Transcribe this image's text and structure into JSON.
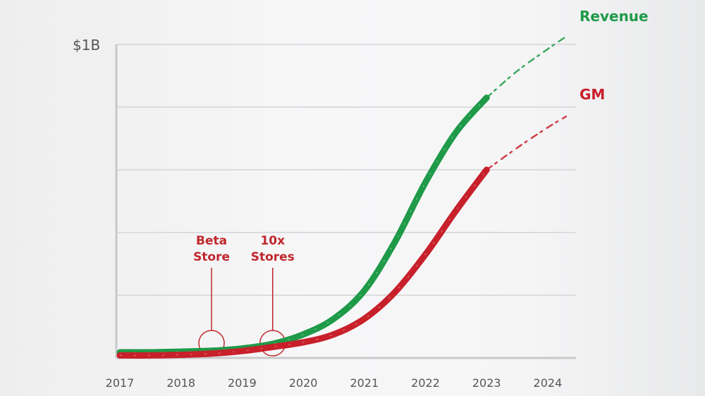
{
  "chart_data": {
    "type": "line",
    "title": "",
    "xlabel": "",
    "ylabel": "",
    "y_unit": "USD millions",
    "y_top_label": "$1B",
    "ylim": [
      0,
      1000
    ],
    "y_gridlines": [
      200,
      400,
      600,
      800,
      1000
    ],
    "grid": true,
    "x": [
      2017,
      2018,
      2019,
      2020,
      2021,
      2022,
      2023,
      2024
    ],
    "x_tick_labels": [
      "2017",
      "2018",
      "2019",
      "2020",
      "2021",
      "2022",
      "2023",
      "2024"
    ],
    "xlim": [
      2017,
      2024.35
    ],
    "series": [
      {
        "name": "Revenue",
        "color": "#1e9a48",
        "label_position": "top-right",
        "x": [
          2017,
          2017.5,
          2018,
          2018.5,
          2019,
          2019.5,
          2020,
          2020.5,
          2021,
          2021.5,
          2022,
          2022.5,
          2023,
          2023.5,
          2024,
          2024.3
        ],
        "values": [
          18,
          18,
          20,
          23,
          30,
          45,
          75,
          125,
          215,
          370,
          560,
          720,
          830,
          915,
          985,
          1025
        ],
        "projected_from": 2023
      },
      {
        "name": "GM",
        "color": "#c8202a",
        "label_position": "right",
        "x": [
          2017,
          2017.5,
          2018,
          2018.5,
          2019,
          2019.5,
          2020,
          2020.5,
          2021,
          2021.5,
          2022,
          2022.5,
          2023,
          2023.5,
          2024,
          2024.3
        ],
        "values": [
          8,
          8,
          10,
          14,
          22,
          35,
          50,
          75,
          125,
          210,
          330,
          470,
          600,
          670,
          735,
          770
        ],
        "projected_from": 2023
      }
    ],
    "annotations": [
      {
        "lines": [
          "Beta",
          "Store"
        ],
        "x": 2018.5,
        "color": "#c0272d"
      },
      {
        "lines": [
          "10x",
          "Stores"
        ],
        "x": 2019.5,
        "color": "#c0272d"
      }
    ]
  },
  "colors": {
    "revenue": "#1e9a48",
    "gm": "#c8202a",
    "annotation": "#c0272d",
    "axis": "#c9c9cb",
    "grid": "#dcdcde",
    "text": "#555555"
  }
}
